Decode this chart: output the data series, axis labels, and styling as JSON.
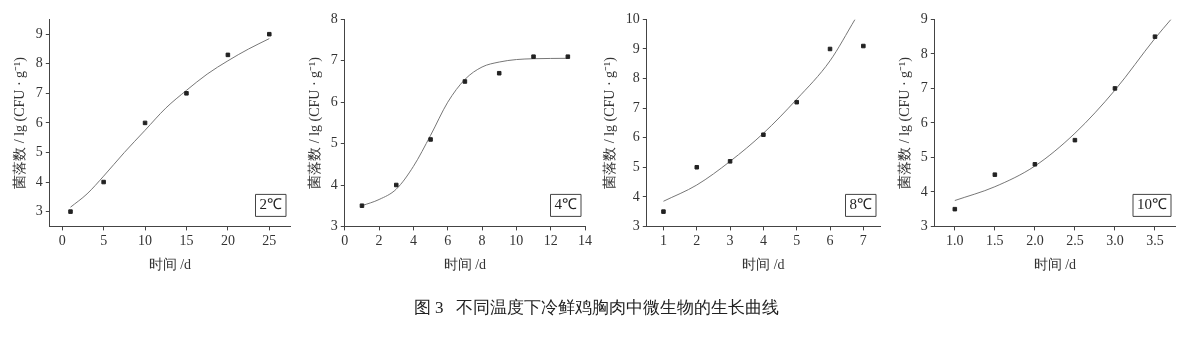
{
  "chart_data": [
    {
      "type": "scatter",
      "xlabel": "时间 /d",
      "ylabel": "菌落数 / lg (CFU · g⁻¹)",
      "annotations": [
        "2℃",
        "图 3   不同温度下冷鲜鸡胸肉中微生物的生长曲线"
      ],
      "xlim": [
        -1.5,
        27.5
      ],
      "xticks": [
        0,
        5,
        10,
        15,
        20,
        25
      ],
      "ylim": [
        2.5,
        9.5
      ],
      "yticks": [
        3,
        4,
        5,
        6,
        7,
        8,
        9
      ],
      "grid": false,
      "legend": false,
      "series": [
        {
          "marker": "square",
          "color": "#222222",
          "x": [
            1,
            5,
            10,
            15,
            20,
            25
          ],
          "values": [
            3,
            4,
            6,
            7,
            8.3,
            9
          ]
        },
        {
          "type": "line",
          "marker": "none",
          "color": "#777777",
          "x": [
            1,
            3,
            5,
            7.5,
            10,
            12.5,
            15,
            17.5,
            20,
            22.5,
            25
          ],
          "values": [
            3.15,
            3.6,
            4.2,
            5.0,
            5.75,
            6.5,
            7.1,
            7.65,
            8.1,
            8.5,
            8.85
          ]
        }
      ]
    },
    {
      "type": "scatter",
      "xlabel": "时间 /d",
      "ylabel": "菌落数 / lg (CFU · g⁻¹)",
      "annotations": [
        "4℃"
      ],
      "xlim": [
        0,
        14
      ],
      "xticks": [
        0,
        2,
        4,
        6,
        8,
        10,
        12,
        14
      ],
      "ylim": [
        3,
        8
      ],
      "yticks": [
        3,
        4,
        5,
        6,
        7,
        8
      ],
      "grid": false,
      "legend": false,
      "series": [
        {
          "marker": "square",
          "color": "#222222",
          "x": [
            1,
            3,
            5,
            7,
            9,
            11,
            13
          ],
          "values": [
            3.5,
            4,
            5.1,
            6.5,
            6.7,
            7.1,
            7.1
          ]
        },
        {
          "type": "line",
          "marker": "none",
          "color": "#777777",
          "x": [
            1,
            2,
            3,
            4,
            5,
            6,
            7,
            8,
            9,
            10,
            11,
            13
          ],
          "values": [
            3.5,
            3.65,
            3.9,
            4.45,
            5.2,
            6.0,
            6.55,
            6.85,
            6.97,
            7.03,
            7.05,
            7.06
          ]
        }
      ]
    },
    {
      "type": "scatter",
      "xlabel": "时间 /d",
      "ylabel": "菌落数 / lg (CFU · g⁻¹)",
      "annotations": [
        "8℃"
      ],
      "xlim": [
        0.5,
        7.5
      ],
      "xticks": [
        1,
        2,
        3,
        4,
        5,
        6,
        7
      ],
      "ylim": [
        3,
        10
      ],
      "yticks": [
        3,
        4,
        5,
        6,
        7,
        8,
        9,
        10
      ],
      "grid": false,
      "legend": false,
      "series": [
        {
          "marker": "square",
          "color": "#222222",
          "x": [
            1,
            2,
            3,
            4,
            5,
            6,
            7
          ],
          "values": [
            3.5,
            5,
            5.2,
            6.1,
            7.2,
            9,
            9.1
          ]
        },
        {
          "type": "line",
          "marker": "none",
          "color": "#777777",
          "x": [
            1,
            2,
            3,
            4,
            5,
            6,
            6.75
          ],
          "values": [
            3.85,
            4.4,
            5.2,
            6.15,
            7.3,
            8.6,
            10
          ]
        }
      ]
    },
    {
      "type": "scatter",
      "xlabel": "时间 /d",
      "ylabel": "菌落数 / lg (CFU · g⁻¹)",
      "annotations": [
        "10℃"
      ],
      "xlim": [
        0.75,
        3.75
      ],
      "xticks": [
        {
          "value": 1,
          "label": "1.0"
        },
        1.5,
        {
          "value": 2,
          "label": "2.0"
        },
        2.5,
        {
          "value": 3,
          "label": "3.0"
        },
        3.5
      ],
      "ylim": [
        3,
        9
      ],
      "yticks": [
        3,
        4,
        5,
        6,
        7,
        8,
        9
      ],
      "grid": false,
      "legend": false,
      "series": [
        {
          "marker": "square",
          "color": "#222222",
          "x": [
            1,
            1.5,
            2,
            2.5,
            3,
            3.5
          ],
          "values": [
            3.5,
            4.5,
            4.8,
            5.5,
            7,
            8.5
          ]
        },
        {
          "type": "line",
          "marker": "none",
          "color": "#777777",
          "x": [
            1,
            1.5,
            2,
            2.5,
            3,
            3.5,
            3.7
          ],
          "values": [
            3.75,
            4.15,
            4.75,
            5.7,
            6.95,
            8.45,
            9
          ]
        }
      ]
    }
  ]
}
